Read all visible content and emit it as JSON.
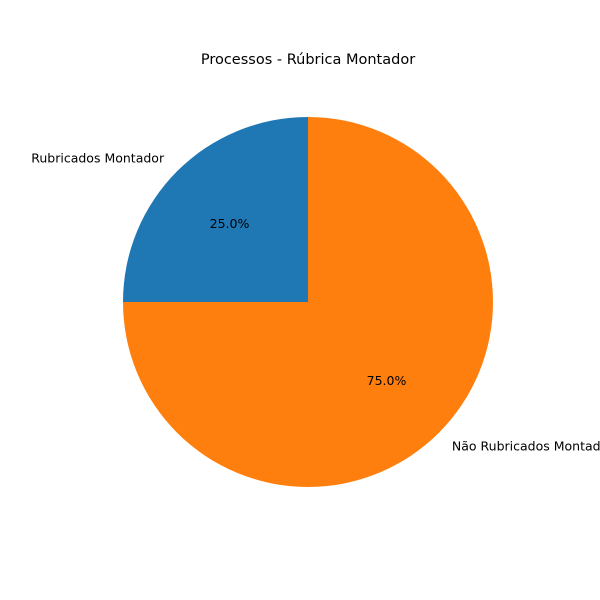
{
  "chart_data": {
    "type": "pie",
    "title": "Processos - Rúbrica Montador",
    "slices": [
      {
        "label": "Rubricados Montador",
        "value": 25.0,
        "pct_label": "25.0%",
        "color": "#1f77b4"
      },
      {
        "label": "Não Rubricados Montador",
        "value": 75.0,
        "pct_label": "75.0%",
        "color": "#ff7f0e"
      }
    ],
    "start_angle_deg": 90,
    "direction": "counterclockwise"
  }
}
